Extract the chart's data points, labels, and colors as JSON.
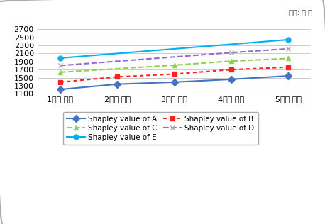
{
  "x_labels": [
    "1농가 연합",
    "2농가 연합",
    "3농가 연합",
    "4농가 연합",
    "5농가 연합"
  ],
  "series": {
    "A": {
      "x": [
        0,
        1,
        2,
        3,
        4
      ],
      "y": [
        1210,
        1340,
        1390,
        1460,
        1545
      ]
    },
    "B": {
      "x": [
        0,
        1,
        2,
        3,
        4
      ],
      "y": [
        1390,
        1520,
        1590,
        1700,
        1760
      ]
    },
    "C": {
      "x": [
        0,
        2,
        3,
        4
      ],
      "y": [
        1635,
        1810,
        1910,
        1975
      ]
    },
    "D": {
      "x": [
        0,
        3,
        4
      ],
      "y": [
        1800,
        2120,
        2215
      ]
    },
    "E": {
      "x": [
        0,
        4
      ],
      "y": [
        1985,
        2440
      ]
    }
  },
  "colors": {
    "A": "#4472C4",
    "B": "#FF2020",
    "C": "#92D050",
    "D": "#9966CC",
    "E": "#00B0F0"
  },
  "linestyles": {
    "A": "solid",
    "B": "dotted",
    "C": "dashed",
    "D": "dashed",
    "E": "solid"
  },
  "markers": {
    "A": "D",
    "B": "s",
    "C": "^",
    "D": "x",
    "E": "o"
  },
  "marker_colors": {
    "A": "#4472C4",
    "B": "#FF2020",
    "C": "#92D050",
    "D": "#B0A0B0",
    "E": "#00B0F0"
  },
  "legend_labels": {
    "A": "Shapley value of A",
    "B": "Shapley value of B",
    "C": "Shapley value of C",
    "D": "Shapley value of D",
    "E": "Shapley value of E"
  },
  "ylim": [
    1100,
    2700
  ],
  "yticks": [
    1100,
    1300,
    1500,
    1700,
    1900,
    2100,
    2300,
    2500,
    2700
  ],
  "unit_label": "단위: 만 원",
  "bg_color": "#FFFFFF",
  "border_color": "#AAAAAA"
}
